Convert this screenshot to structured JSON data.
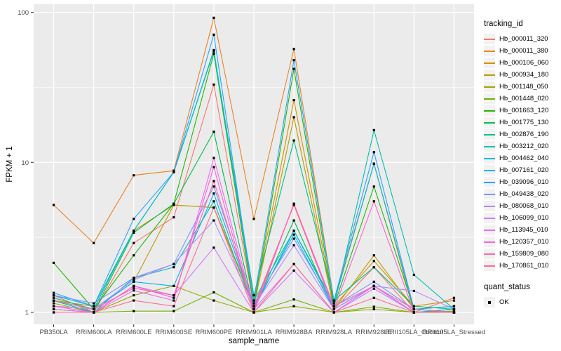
{
  "chart_data": {
    "type": "line",
    "title": "",
    "xlabel": "sample_name",
    "ylabel": "FPKM + 1",
    "y_scale": "log10",
    "ylim": [
      0.93,
      113
    ],
    "y_ticks": [
      1,
      10,
      100
    ],
    "y_minor_gridlines": [
      3.162,
      31.62
    ],
    "grid": true,
    "legend_position": "right",
    "legend_title": "tracking_id",
    "point_legend": {
      "title": "quant_status",
      "label": "OK",
      "marker_color": "#000000"
    },
    "panel_bg": "#EBEBEB",
    "gridline_color": "#FFFFFF",
    "tick_label_color": "#4D4D4D",
    "categories": [
      "PB350LA",
      "RRIM600LA",
      "RRIM600LE",
      "RRIM600SE",
      "RRIM600PE",
      "RRIM901LA",
      "RRIM928BA",
      "RRIM928LA",
      "RRIM928LE",
      "RRII105LA_Control",
      "RRII105LA_Stressed"
    ],
    "series": [
      {
        "name": "Hb_000011_320",
        "color": "#F8766D",
        "values": [
          1.3,
          1.0,
          2.9,
          4.3,
          33,
          1.1,
          5.2,
          1.05,
          2.0,
          1.0,
          1.25
        ]
      },
      {
        "name": "Hb_000011_380",
        "color": "#E88526",
        "values": [
          5.2,
          2.9,
          8.2,
          8.8,
          92,
          4.2,
          57,
          1.2,
          9.8,
          1.0,
          1.05
        ]
      },
      {
        "name": "Hb_000106_060",
        "color": "#D39200",
        "values": [
          1.2,
          1.1,
          3.5,
          5.2,
          5.0,
          1.15,
          26,
          1.1,
          2.2,
          1.1,
          1.2
        ]
      },
      {
        "name": "Hb_000934_180",
        "color": "#BB9D00",
        "values": [
          1.1,
          1.05,
          1.6,
          5.2,
          5.0,
          1.1,
          20,
          1.05,
          2.4,
          1.05,
          1.1
        ]
      },
      {
        "name": "Hb_001148_050",
        "color": "#9DA700",
        "values": [
          1.15,
          1.0,
          1.3,
          1.5,
          1.2,
          1.0,
          1.1,
          1.0,
          1.05,
          1.0,
          1.0
        ]
      },
      {
        "name": "Hb_001448_020",
        "color": "#72B000",
        "values": [
          1.05,
          1.0,
          1.02,
          1.02,
          1.36,
          1.0,
          1.22,
          1.0,
          1.09,
          1.0,
          1.02
        ]
      },
      {
        "name": "Hb_001663_120",
        "color": "#24B700",
        "values": [
          2.14,
          1.05,
          2.4,
          5.3,
          53,
          1.1,
          42,
          1.1,
          6.9,
          1.05,
          1.0
        ]
      },
      {
        "name": "Hb_001775_130",
        "color": "#00BC51",
        "values": [
          1.2,
          1.0,
          3.4,
          5.3,
          16,
          1.05,
          4.1,
          1.05,
          1.5,
          1.0,
          1.0
        ]
      },
      {
        "name": "Hb_002876_190",
        "color": "#00C087",
        "values": [
          1.25,
          1.05,
          3.5,
          8.6,
          55,
          1.3,
          14,
          1.2,
          2.0,
          1.1,
          1.05
        ]
      },
      {
        "name": "Hb_003212_020",
        "color": "#00C0B2",
        "values": [
          1.2,
          1.0,
          1.7,
          2.0,
          5.5,
          1.05,
          3.5,
          1.1,
          16.4,
          1.78,
          1.05
        ]
      },
      {
        "name": "Hb_004462_040",
        "color": "#00BCD6",
        "values": [
          1.3,
          1.1,
          3.5,
          8.6,
          56,
          1.2,
          3.5,
          1.15,
          9.8,
          1.05,
          1.1
        ]
      },
      {
        "name": "Hb_007161_020",
        "color": "#00B3F2",
        "values": [
          1.2,
          1.05,
          1.6,
          1.5,
          6.2,
          1.1,
          3.3,
          1.05,
          1.5,
          1.0,
          1.05
        ]
      },
      {
        "name": "Hb_039096_010",
        "color": "#29A3FF",
        "values": [
          1.35,
          1.1,
          4.2,
          8.6,
          71,
          1.2,
          48,
          1.2,
          11.7,
          1.05,
          1.0
        ]
      },
      {
        "name": "Hb_049438_020",
        "color": "#7997FF",
        "values": [
          1.3,
          1.15,
          1.7,
          2.1,
          6.9,
          1.15,
          3.1,
          1.1,
          1.6,
          1.05,
          1.0
        ]
      },
      {
        "name": "Hb_080068_010",
        "color": "#AE8CFF",
        "values": [
          1.1,
          1.05,
          1.65,
          2.1,
          4.1,
          1.1,
          2.8,
          1.05,
          1.5,
          1.39,
          1.05
        ]
      },
      {
        "name": "Hb_106099_010",
        "color": "#D277FF",
        "values": [
          1.05,
          1.0,
          1.5,
          1.3,
          2.7,
          1.0,
          1.9,
          1.0,
          1.44,
          1.0,
          1.0
        ]
      },
      {
        "name": "Hb_113945_010",
        "color": "#ED68F9",
        "values": [
          1.0,
          1.0,
          1.4,
          1.2,
          10.7,
          1.05,
          2.1,
          1.0,
          1.5,
          1.0,
          1.0
        ]
      },
      {
        "name": "Hb_120357_010",
        "color": "#FC61D5",
        "values": [
          1.1,
          1.0,
          1.5,
          1.25,
          9.3,
          1.0,
          5.3,
          1.05,
          5.5,
          1.0,
          1.0
        ]
      },
      {
        "name": "Hb_159809_080",
        "color": "#FF65AC",
        "values": [
          1.2,
          1.05,
          1.45,
          1.3,
          7.5,
          1.05,
          5.3,
          1.1,
          1.5,
          1.05,
          1.0
        ]
      },
      {
        "name": "Hb_170861_010",
        "color": "#FF6C90",
        "values": [
          1.0,
          1.0,
          1.2,
          1.1,
          5.0,
          1.0,
          2.1,
          1.0,
          1.25,
          1.0,
          1.0
        ]
      }
    ]
  }
}
